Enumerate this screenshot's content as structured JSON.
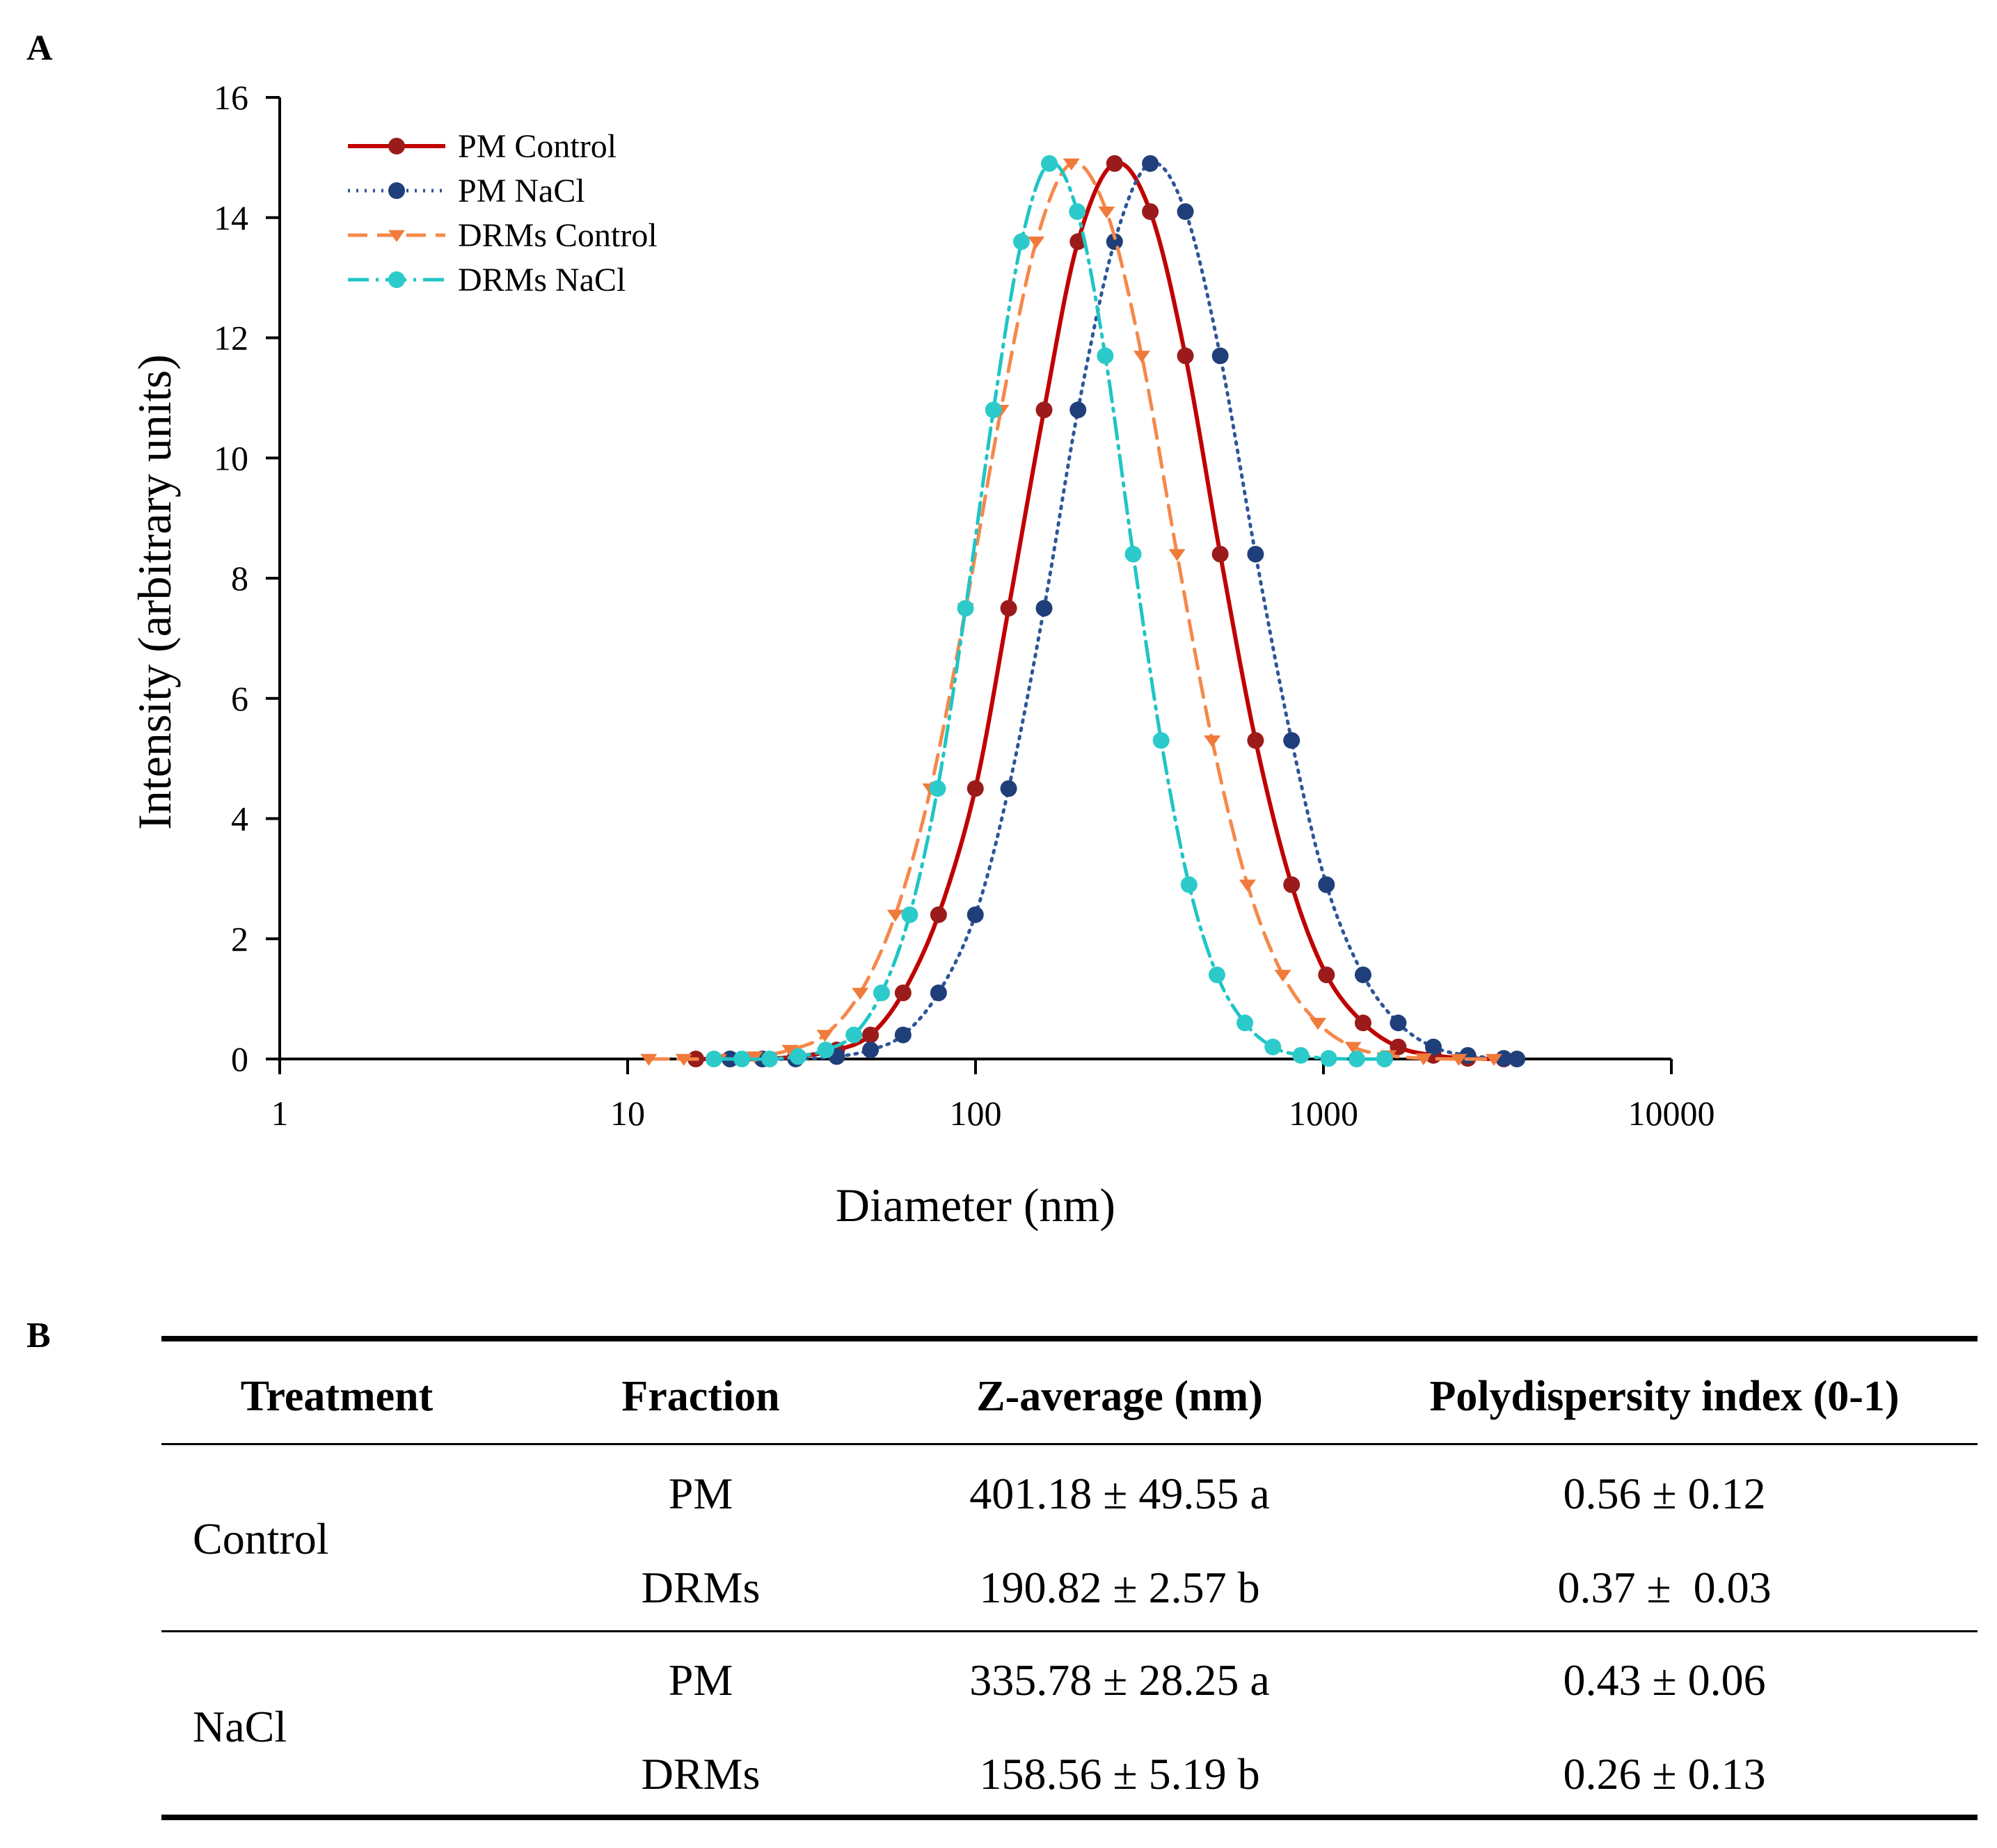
{
  "panel_a_label": "A",
  "panel_b_label": "B",
  "chart_data": {
    "type": "line",
    "xlabel": "Diameter (nm)",
    "ylabel": "Intensity (arbitrary units)",
    "x_scale": "log",
    "xlim": [
      1,
      10000
    ],
    "ylim": [
      0,
      16
    ],
    "x_ticks": [
      "1",
      "10",
      "100",
      "1000",
      "10000"
    ],
    "y_ticks": [
      "0",
      "2",
      "4",
      "6",
      "8",
      "10",
      "12",
      "14",
      "16"
    ],
    "grid": false,
    "legend": "top-left",
    "series": [
      {
        "name": "PM Control",
        "color": "#c00000",
        "line_style": "solid",
        "marker": "circle",
        "marker_color": "#9b1b1b",
        "x": [
          15.7,
          19.7,
          24.4,
          30.4,
          39.9,
          49.9,
          61.9,
          78.3,
          99.9,
          124.5,
          157.4,
          197.0,
          251.0,
          317.9,
          401.0,
          505.0,
          638.0,
          810.0,
          1020.0,
          1300.0,
          1640.0,
          2070.0,
          2600.0,
          3300.0
        ],
        "y": [
          0.0,
          0.0,
          0.0,
          0.04,
          0.15,
          0.4,
          1.1,
          2.4,
          4.5,
          7.5,
          10.8,
          13.6,
          14.9,
          14.1,
          11.7,
          8.4,
          5.3,
          2.9,
          1.4,
          0.6,
          0.2,
          0.06,
          0.01,
          0.0
        ]
      },
      {
        "name": "PM NaCl",
        "color": "#2f5597",
        "line_style": "dotted",
        "marker": "circle",
        "marker_color": "#1f3f7a",
        "x": [
          19.7,
          24.4,
          30.4,
          39.9,
          49.9,
          61.9,
          78.3,
          99.9,
          124.5,
          157.4,
          197.0,
          251.0,
          317.9,
          401.0,
          505.0,
          638.0,
          810.0,
          1020.0,
          1300.0,
          1640.0,
          2070.0,
          2600.0,
          3300.0,
          3600.0
        ],
        "y": [
          0.0,
          0.0,
          0.0,
          0.04,
          0.15,
          0.4,
          1.1,
          2.4,
          4.5,
          7.5,
          10.8,
          13.6,
          14.9,
          14.1,
          11.7,
          8.4,
          5.3,
          2.9,
          1.4,
          0.6,
          0.2,
          0.06,
          0.01,
          0.0
        ]
      },
      {
        "name": "DRMs Control",
        "color": "#f4894b",
        "line_style": "dashed",
        "marker": "triangle-down",
        "marker_color": "#f07a3a",
        "x": [
          11.5,
          14.5,
          18.3,
          23.2,
          29.3,
          36.9,
          46.6,
          58.8,
          74.3,
          93.7,
          118.3,
          149.4,
          188.6,
          238.0,
          300.5,
          379.5,
          479.0,
          605.0,
          764.0,
          964.0,
          1217.0,
          1537.0,
          1940.0,
          2448.0,
          3090.0
        ],
        "y": [
          0.0,
          0.0,
          0.0,
          0.04,
          0.15,
          0.4,
          1.1,
          2.4,
          4.5,
          7.5,
          10.8,
          13.6,
          14.9,
          14.1,
          11.7,
          8.4,
          5.3,
          2.9,
          1.4,
          0.6,
          0.2,
          0.06,
          0.01,
          0.0,
          0.0
        ]
      },
      {
        "name": "DRMs NaCl",
        "color": "#20c5c5",
        "line_style": "dash-dot",
        "marker": "circle",
        "marker_color": "#2ccaca",
        "x": [
          17.7,
          21.3,
          25.6,
          30.9,
          37.1,
          44.7,
          53.7,
          64.7,
          77.8,
          93.6,
          112.6,
          135.5,
          163.0,
          196.1,
          235.9,
          283.8,
          341.5,
          410.8,
          494.2,
          594.6,
          715.4,
          860.7,
          1035.0,
          1246.0,
          1499.0
        ],
        "y": [
          0.0,
          0.0,
          0.0,
          0.04,
          0.15,
          0.4,
          1.1,
          2.4,
          4.5,
          7.5,
          10.8,
          13.6,
          14.9,
          14.1,
          11.7,
          8.4,
          5.3,
          2.9,
          1.4,
          0.6,
          0.2,
          0.06,
          0.01,
          0.0,
          0.0
        ]
      }
    ]
  },
  "table": {
    "headers": [
      "Treatment",
      "Fraction",
      "Z-average (nm)",
      "Polydispersity index (0-1)"
    ],
    "groups": [
      {
        "treatment": "Control",
        "rows": [
          {
            "fraction": "PM",
            "z_average": "401.18 ± 49.55 a",
            "pdi": "0.56 ± 0.12"
          },
          {
            "fraction": "DRMs",
            "z_average": "190.82 ± 2.57 b",
            "pdi": "0.37 ±  0.03"
          }
        ]
      },
      {
        "treatment": "NaCl",
        "rows": [
          {
            "fraction": "PM",
            "z_average": "335.78 ± 28.25 a",
            "pdi": "0.43 ± 0.06"
          },
          {
            "fraction": "DRMs",
            "z_average": "158.56 ± 5.19 b",
            "pdi": "0.26 ± 0.13"
          }
        ]
      }
    ]
  }
}
